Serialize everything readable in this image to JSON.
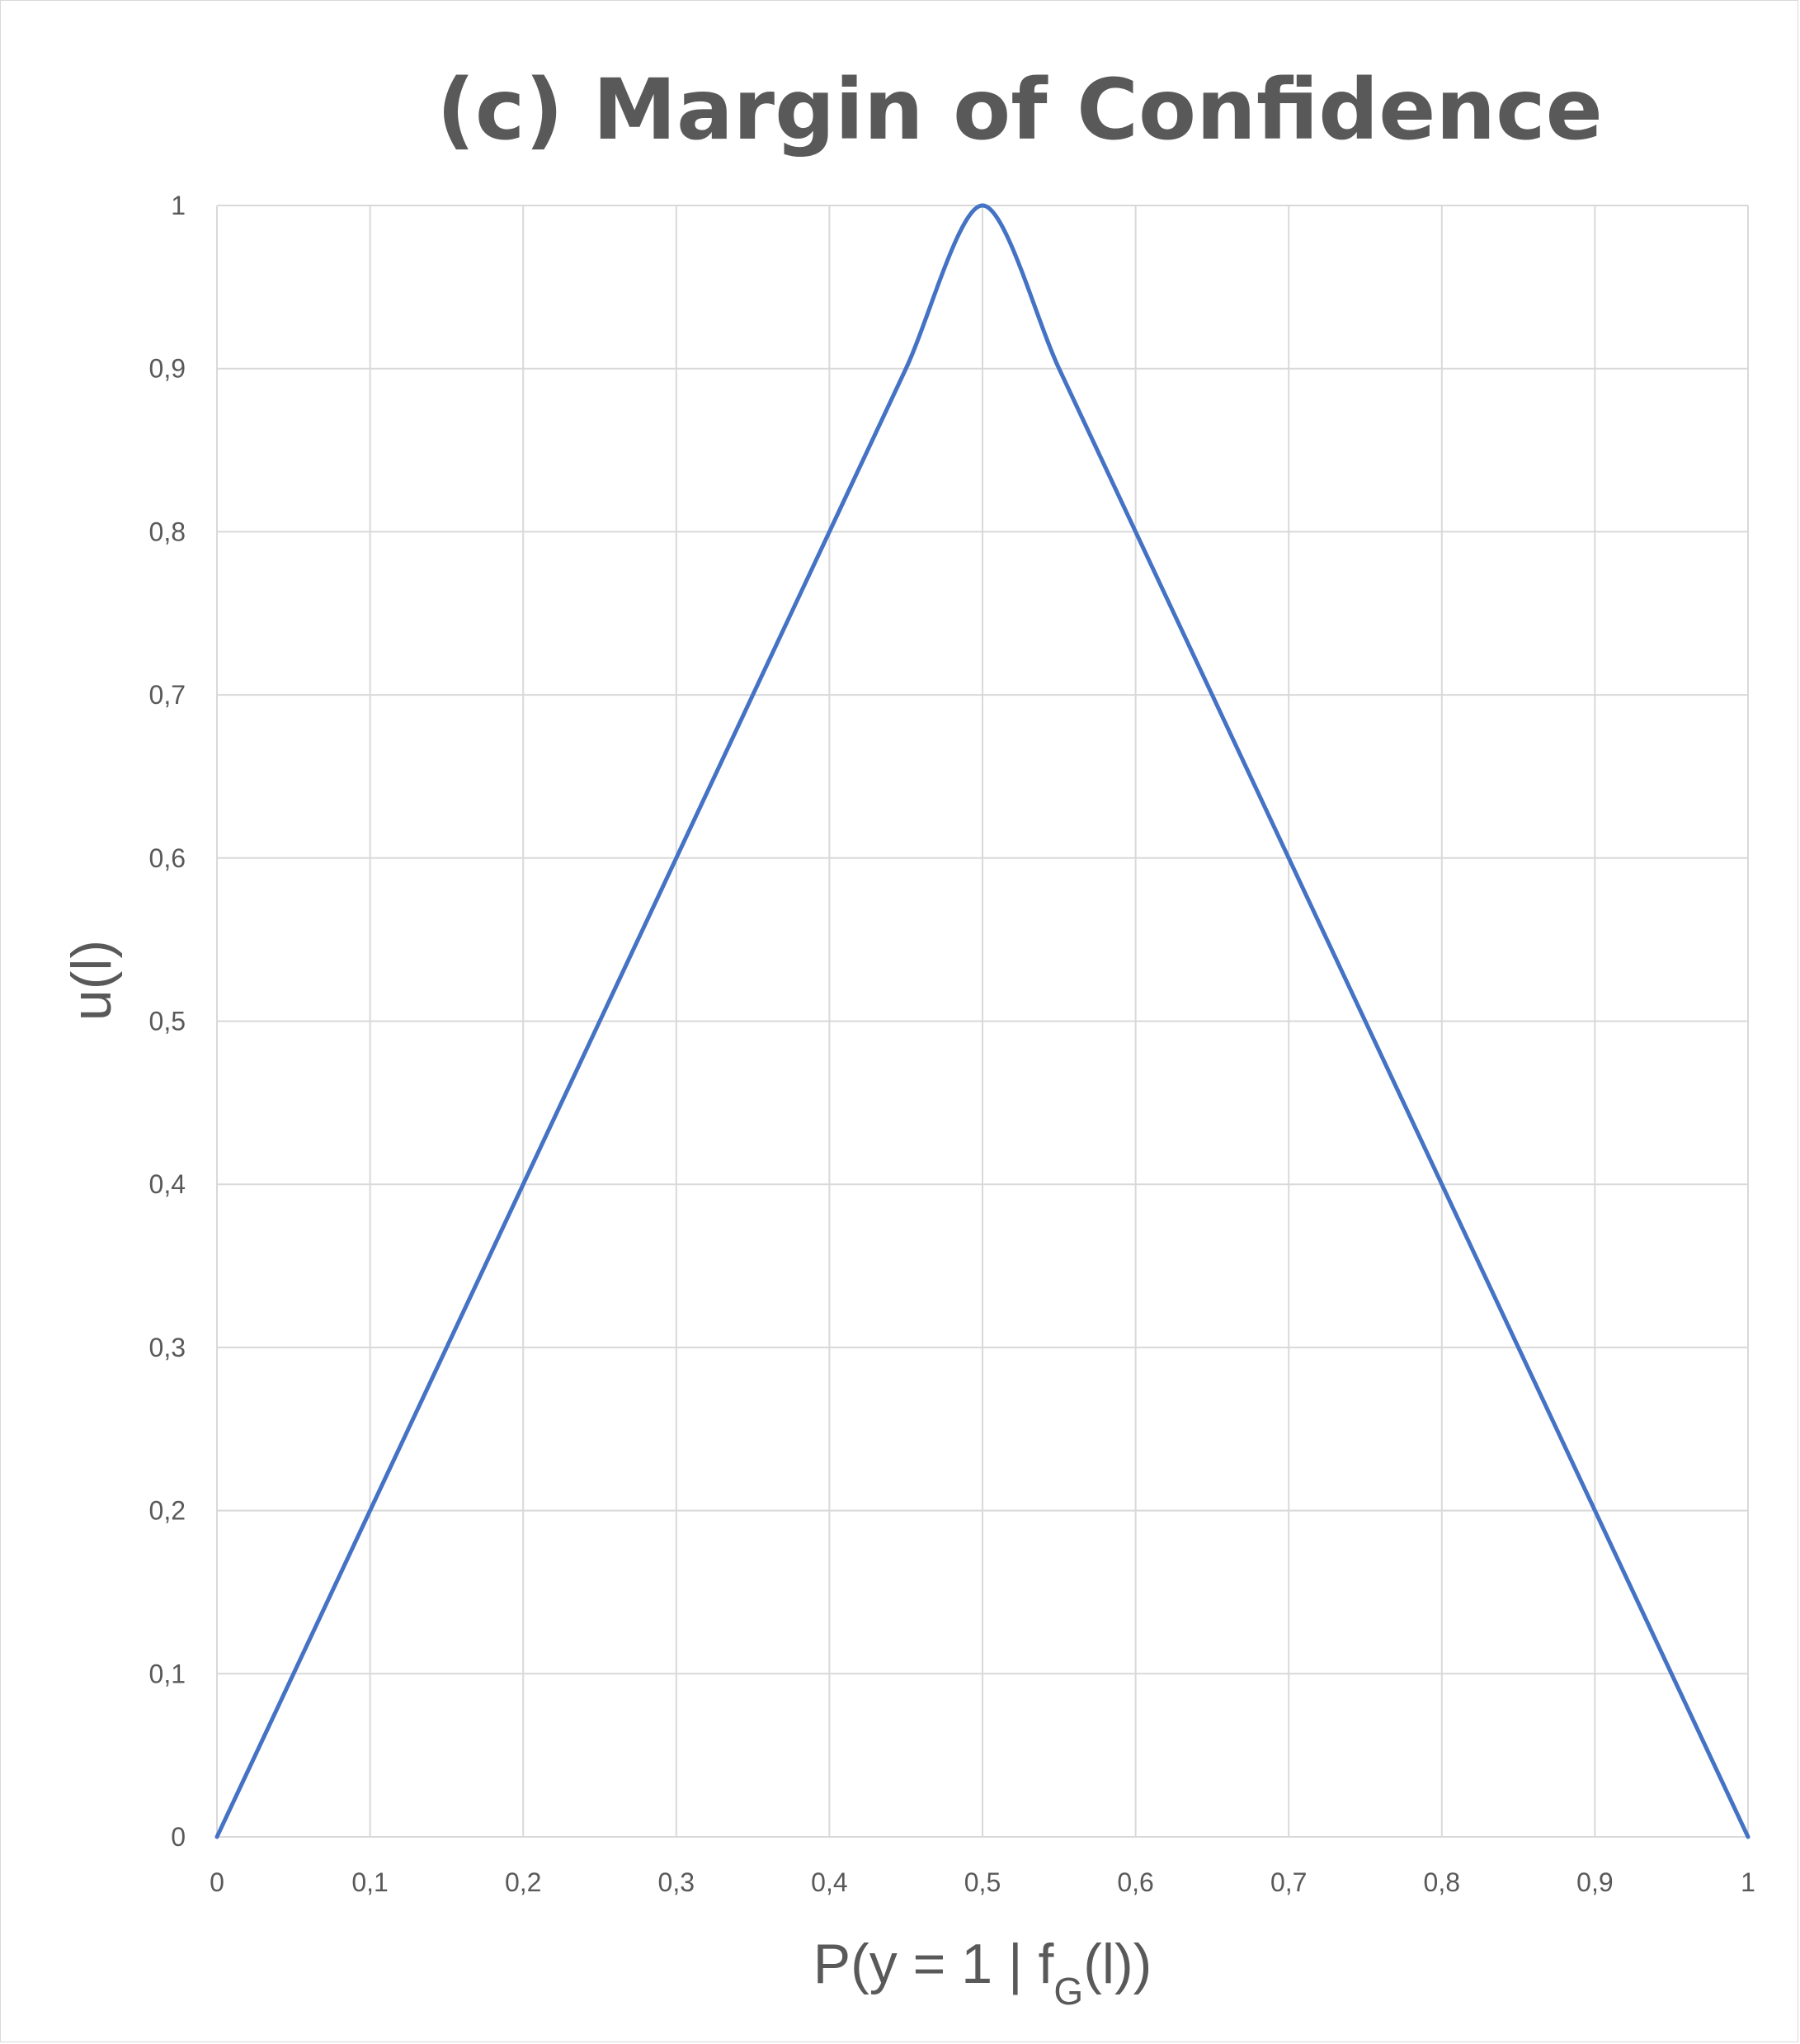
{
  "chart_data": {
    "type": "line",
    "title": "(c) Margin of Confidence",
    "xlabel_main": "P(y = 1 | f",
    "xlabel_sub": "G",
    "xlabel_tail": "(l))",
    "ylabel": "u(l)",
    "xlim": [
      0,
      1
    ],
    "ylim": [
      0,
      1
    ],
    "x_ticks": [
      0,
      0.1,
      0.2,
      0.3,
      0.4,
      0.5,
      0.6,
      0.7,
      0.8,
      0.9,
      1
    ],
    "x_tick_labels": [
      "0",
      "0,1",
      "0,2",
      "0,3",
      "0,4",
      "0,5",
      "0,6",
      "0,7",
      "0,8",
      "0,9",
      "1"
    ],
    "y_ticks": [
      0,
      0.1,
      0.2,
      0.3,
      0.4,
      0.5,
      0.6,
      0.7,
      0.8,
      0.9,
      1
    ],
    "y_tick_labels": [
      "0",
      "0,1",
      "0,2",
      "0,3",
      "0,4",
      "0,5",
      "0,6",
      "0,7",
      "0,8",
      "0,9",
      "1"
    ],
    "grid": true,
    "series": [
      {
        "color": "#4472c4",
        "x": [
          0,
          0.05,
          0.1,
          0.15,
          0.2,
          0.25,
          0.3,
          0.35,
          0.4,
          0.45,
          0.5,
          0.55,
          0.6,
          0.65,
          0.7,
          0.75,
          0.8,
          0.85,
          0.9,
          0.95,
          1
        ],
        "y": [
          0,
          0.1,
          0.2,
          0.3,
          0.4,
          0.5,
          0.6,
          0.7,
          0.8,
          0.9,
          1,
          0.9,
          0.8,
          0.7,
          0.6,
          0.5,
          0.4,
          0.3,
          0.2,
          0.1,
          0
        ]
      }
    ]
  }
}
